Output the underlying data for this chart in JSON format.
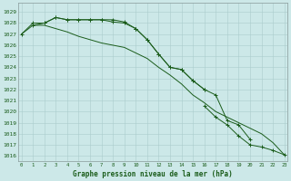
{
  "title": "Graphe pression niveau de la mer (hPa)",
  "bg_color": "#cce8e8",
  "grid_color": "#aacccc",
  "line_color": "#1a5c1a",
  "x_labels": [
    "0",
    "1",
    "2",
    "3",
    "4",
    "5",
    "6",
    "7",
    "8",
    "9",
    "10",
    "11",
    "12",
    "13",
    "14",
    "15",
    "16",
    "17",
    "18",
    "19",
    "20",
    "21",
    "22",
    "23"
  ],
  "yticks": [
    1016,
    1017,
    1018,
    1019,
    1020,
    1021,
    1022,
    1023,
    1024,
    1025,
    1026,
    1027,
    1028,
    1029
  ],
  "ylim_low": 1015.5,
  "ylim_high": 1029.8,
  "series1_y": [
    1027.0,
    1028.0,
    1028.0,
    1028.5,
    1028.3,
    1028.3,
    1028.3,
    1028.3,
    1028.3,
    1028.1,
    1027.5,
    null,
    null,
    null,
    null,
    null,
    null,
    null,
    null,
    null,
    null,
    null,
    null,
    null
  ],
  "series2_y": [
    null,
    null,
    null,
    null,
    null,
    null,
    null,
    null,
    null,
    null,
    1027.5,
    1026.5,
    1025.2,
    1024.0,
    1023.8,
    1022.8,
    1022.0,
    null,
    null,
    null,
    null,
    null,
    null,
    null
  ],
  "series3_y": [
    null,
    1027.8,
    1028.0,
    1028.5,
    1028.3,
    1028.3,
    1028.3,
    1028.3,
    1028.1,
    1028.0,
    1027.5,
    1026.5,
    1025.2,
    1024.0,
    1023.8,
    1022.8,
    1022.0,
    1021.5,
    1019.2,
    1018.8,
    1017.5,
    null,
    null,
    null
  ],
  "series4_y": [
    1027.0,
    1027.8,
    1027.8,
    1027.5,
    1027.2,
    1026.8,
    1026.5,
    1026.2,
    1026.0,
    1025.8,
    1025.3,
    1024.8,
    1024.0,
    1023.3,
    1022.5,
    1021.5,
    1020.8,
    1020.0,
    1019.5,
    1019.0,
    1018.5,
    1018.0,
    1017.2,
    1016.1
  ],
  "series5_y": [
    null,
    null,
    null,
    null,
    null,
    null,
    null,
    null,
    null,
    null,
    null,
    null,
    null,
    null,
    null,
    null,
    1020.5,
    1019.5,
    1018.8,
    1017.8,
    1017.0,
    1016.8,
    1016.5,
    1016.1
  ]
}
